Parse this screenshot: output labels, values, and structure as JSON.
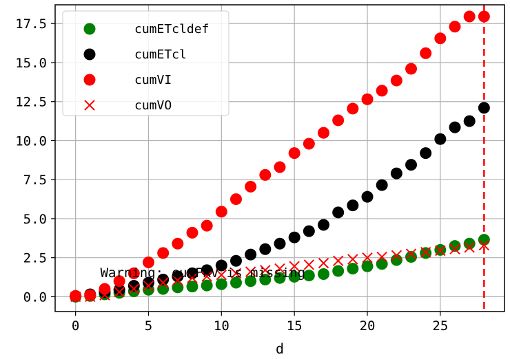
{
  "chart_data": {
    "type": "scatter",
    "title": "",
    "xlabel": "d",
    "ylabel": "",
    "xlim": [
      -1.4,
      29.4
    ],
    "ylim": [
      -0.95,
      18.7
    ],
    "grid": true,
    "legend_position": "top-left",
    "x_ticks": [
      0,
      5,
      10,
      15,
      20,
      25
    ],
    "y_ticks": [
      0.0,
      2.5,
      5.0,
      7.5,
      10.0,
      12.5,
      15.0,
      17.5
    ],
    "x_tick_labels": [
      "0",
      "5",
      "10",
      "15",
      "20",
      "25"
    ],
    "y_tick_labels": [
      "0.0",
      "2.5",
      "5.0",
      "7.5",
      "10.0",
      "12.5",
      "15.0",
      "17.5"
    ],
    "vline": {
      "x": 28,
      "color": "#ff0000",
      "style": "dashed"
    },
    "annotation": {
      "text": "Warning: cumFRV is missing",
      "x": 1.7,
      "y": 1.25
    },
    "series": [
      {
        "name": "cumETcldef",
        "marker": "circle",
        "color": "#008000",
        "x": [
          0,
          1,
          2,
          3,
          4,
          5,
          6,
          7,
          8,
          9,
          10,
          11,
          12,
          13,
          14,
          15,
          16,
          17,
          18,
          19,
          20,
          21,
          22,
          23,
          24,
          25,
          26,
          27,
          28
        ],
        "y": [
          0.0,
          0.05,
          0.15,
          0.25,
          0.35,
          0.45,
          0.5,
          0.6,
          0.65,
          0.72,
          0.8,
          0.9,
          1.0,
          1.1,
          1.2,
          1.28,
          1.36,
          1.45,
          1.65,
          1.8,
          1.95,
          2.1,
          2.35,
          2.55,
          2.8,
          3.0,
          3.25,
          3.4,
          3.65
        ]
      },
      {
        "name": "cumETcl",
        "marker": "circle",
        "color": "#000000",
        "x": [
          0,
          1,
          2,
          3,
          4,
          5,
          6,
          7,
          8,
          9,
          10,
          11,
          12,
          13,
          14,
          15,
          16,
          17,
          18,
          19,
          20,
          21,
          22,
          23,
          24,
          25,
          26,
          27,
          28
        ],
        "y": [
          0.05,
          0.15,
          0.3,
          0.45,
          0.7,
          0.9,
          1.1,
          1.3,
          1.5,
          1.7,
          2.0,
          2.3,
          2.7,
          3.05,
          3.4,
          3.8,
          4.2,
          4.6,
          5.4,
          5.85,
          6.4,
          7.15,
          7.9,
          8.45,
          9.2,
          10.1,
          10.85,
          11.25,
          12.1
        ]
      },
      {
        "name": "cumVI",
        "marker": "circle",
        "color": "#ff0000",
        "x": [
          0,
          1,
          2,
          3,
          4,
          5,
          6,
          7,
          8,
          9,
          10,
          11,
          12,
          13,
          14,
          15,
          16,
          17,
          18,
          19,
          20,
          21,
          22,
          23,
          24,
          25,
          26,
          27,
          28
        ],
        "y": [
          0.05,
          0.1,
          0.5,
          1.0,
          1.5,
          2.2,
          2.8,
          3.4,
          4.1,
          4.55,
          5.45,
          6.25,
          7.05,
          7.8,
          8.3,
          9.2,
          9.8,
          10.5,
          11.3,
          12.05,
          12.65,
          13.2,
          13.85,
          14.6,
          15.6,
          16.55,
          17.3,
          17.95,
          17.95
        ]
      },
      {
        "name": "cumVO",
        "marker": "x",
        "color": "#ff0000",
        "x": [
          0,
          1,
          2,
          3,
          4,
          5,
          6,
          7,
          8,
          9,
          10,
          11,
          12,
          13,
          14,
          15,
          16,
          17,
          18,
          19,
          20,
          21,
          22,
          23,
          24,
          25,
          26,
          27,
          28
        ],
        "y": [
          0.0,
          0.0,
          0.1,
          0.3,
          0.5,
          0.7,
          0.9,
          1.05,
          1.2,
          1.3,
          1.4,
          1.5,
          1.6,
          1.7,
          1.8,
          1.95,
          2.05,
          2.15,
          2.3,
          2.4,
          2.5,
          2.55,
          2.65,
          2.75,
          2.85,
          2.95,
          3.05,
          3.15,
          3.3
        ]
      }
    ]
  }
}
